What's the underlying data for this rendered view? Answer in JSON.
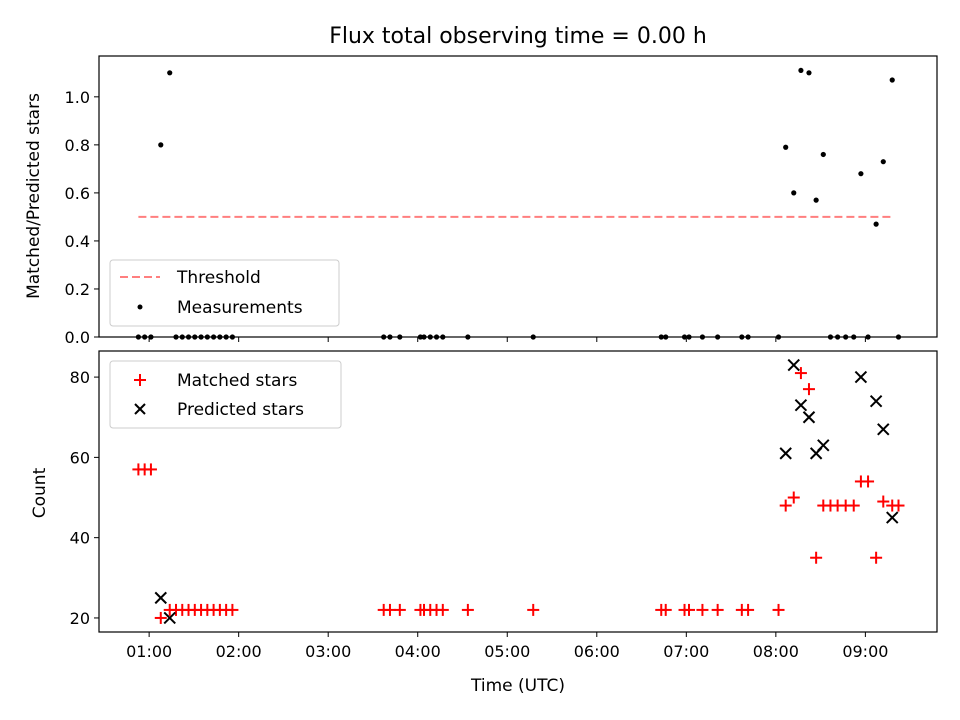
{
  "chart_data": [
    {
      "type": "scatter",
      "title": "Flux total observing time = 0.00 h",
      "ylabel": "Matched/Predicted stars",
      "xlabel": "",
      "x_unit": "hours (UTC)",
      "xlim": [
        0.44,
        9.8
      ],
      "ylim": [
        0,
        1.17
      ],
      "yticks": [
        "0.0",
        "0.2",
        "0.4",
        "0.6",
        "0.8",
        "1.0"
      ],
      "ytick_values": [
        0.0,
        0.2,
        0.4,
        0.6,
        0.8,
        1.0
      ],
      "grid": false,
      "legend_placement": "lower-left",
      "series": [
        {
          "name": "Threshold",
          "style": "dashed-line",
          "color": "#ff7f7f",
          "x": [
            0.88,
            9.3
          ],
          "y": [
            0.5,
            0.5
          ]
        },
        {
          "name": "Measurements",
          "style": "dot",
          "color": "#000000",
          "x": [
            0.88,
            0.95,
            1.02,
            1.13,
            1.23,
            1.3,
            1.37,
            1.44,
            1.51,
            1.58,
            1.65,
            1.72,
            1.79,
            1.86,
            1.93,
            3.62,
            3.69,
            3.8,
            4.03,
            4.07,
            4.14,
            4.21,
            4.28,
            4.56,
            5.29,
            6.72,
            6.77,
            6.98,
            7.03,
            7.18,
            7.35,
            7.62,
            7.69,
            8.03,
            8.11,
            8.2,
            8.28,
            8.37,
            8.45,
            8.53,
            8.61,
            8.69,
            8.78,
            8.87,
            8.95,
            9.03,
            9.12,
            9.2,
            9.3,
            9.37
          ],
          "y": [
            0,
            0,
            0,
            0.8,
            1.1,
            0,
            0,
            0,
            0,
            0,
            0,
            0,
            0,
            0,
            0,
            0,
            0,
            0,
            0,
            0,
            0,
            0,
            0,
            0,
            0,
            0,
            0,
            0,
            0,
            0,
            0,
            0,
            0,
            0,
            0.79,
            0.6,
            1.11,
            1.1,
            0.57,
            0.76,
            0,
            0,
            0,
            0,
            0.68,
            0,
            0.47,
            0.73,
            1.07,
            0
          ]
        }
      ]
    },
    {
      "type": "scatter",
      "title": "",
      "ylabel": "Count",
      "xlabel": "Time (UTC)",
      "x_unit": "hours (UTC)",
      "xlim": [
        0.44,
        9.8
      ],
      "ylim": [
        16.5,
        86.5
      ],
      "yticks": [
        "20",
        "40",
        "60",
        "80"
      ],
      "ytick_values": [
        20,
        40,
        60,
        80
      ],
      "xticks": [
        "01:00",
        "02:00",
        "03:00",
        "04:00",
        "05:00",
        "06:00",
        "07:00",
        "08:00",
        "09:00"
      ],
      "xtick_values": [
        1,
        2,
        3,
        4,
        5,
        6,
        7,
        8,
        9
      ],
      "grid": false,
      "legend_placement": "top-left",
      "series": [
        {
          "name": "Matched stars",
          "style": "plus",
          "color": "#ff0000",
          "x": [
            0.88,
            0.95,
            1.02,
            1.13,
            1.23,
            1.3,
            1.37,
            1.44,
            1.51,
            1.58,
            1.65,
            1.72,
            1.79,
            1.86,
            1.93,
            3.62,
            3.69,
            3.8,
            4.03,
            4.07,
            4.14,
            4.21,
            4.28,
            4.56,
            5.29,
            6.72,
            6.77,
            6.98,
            7.03,
            7.18,
            7.35,
            7.62,
            7.69,
            8.03,
            8.11,
            8.2,
            8.28,
            8.37,
            8.45,
            8.53,
            8.61,
            8.69,
            8.78,
            8.87,
            8.95,
            9.03,
            9.12,
            9.2,
            9.3,
            9.37
          ],
          "y": [
            57,
            57,
            57,
            20,
            22,
            22,
            22,
            22,
            22,
            22,
            22,
            22,
            22,
            22,
            22,
            22,
            22,
            22,
            22,
            22,
            22,
            22,
            22,
            22,
            22,
            22,
            22,
            22,
            22,
            22,
            22,
            22,
            22,
            22,
            48,
            50,
            81,
            77,
            35,
            48,
            48,
            48,
            48,
            48,
            54,
            54,
            35,
            49,
            48,
            48
          ]
        },
        {
          "name": "Predicted stars",
          "style": "x",
          "color": "#000000",
          "x": [
            1.13,
            1.23,
            8.11,
            8.2,
            8.28,
            8.37,
            8.45,
            8.53,
            8.95,
            9.12,
            9.2,
            9.3
          ],
          "y": [
            25,
            20,
            61,
            83,
            73,
            70,
            61,
            63,
            80,
            74,
            67,
            45
          ]
        }
      ]
    }
  ]
}
